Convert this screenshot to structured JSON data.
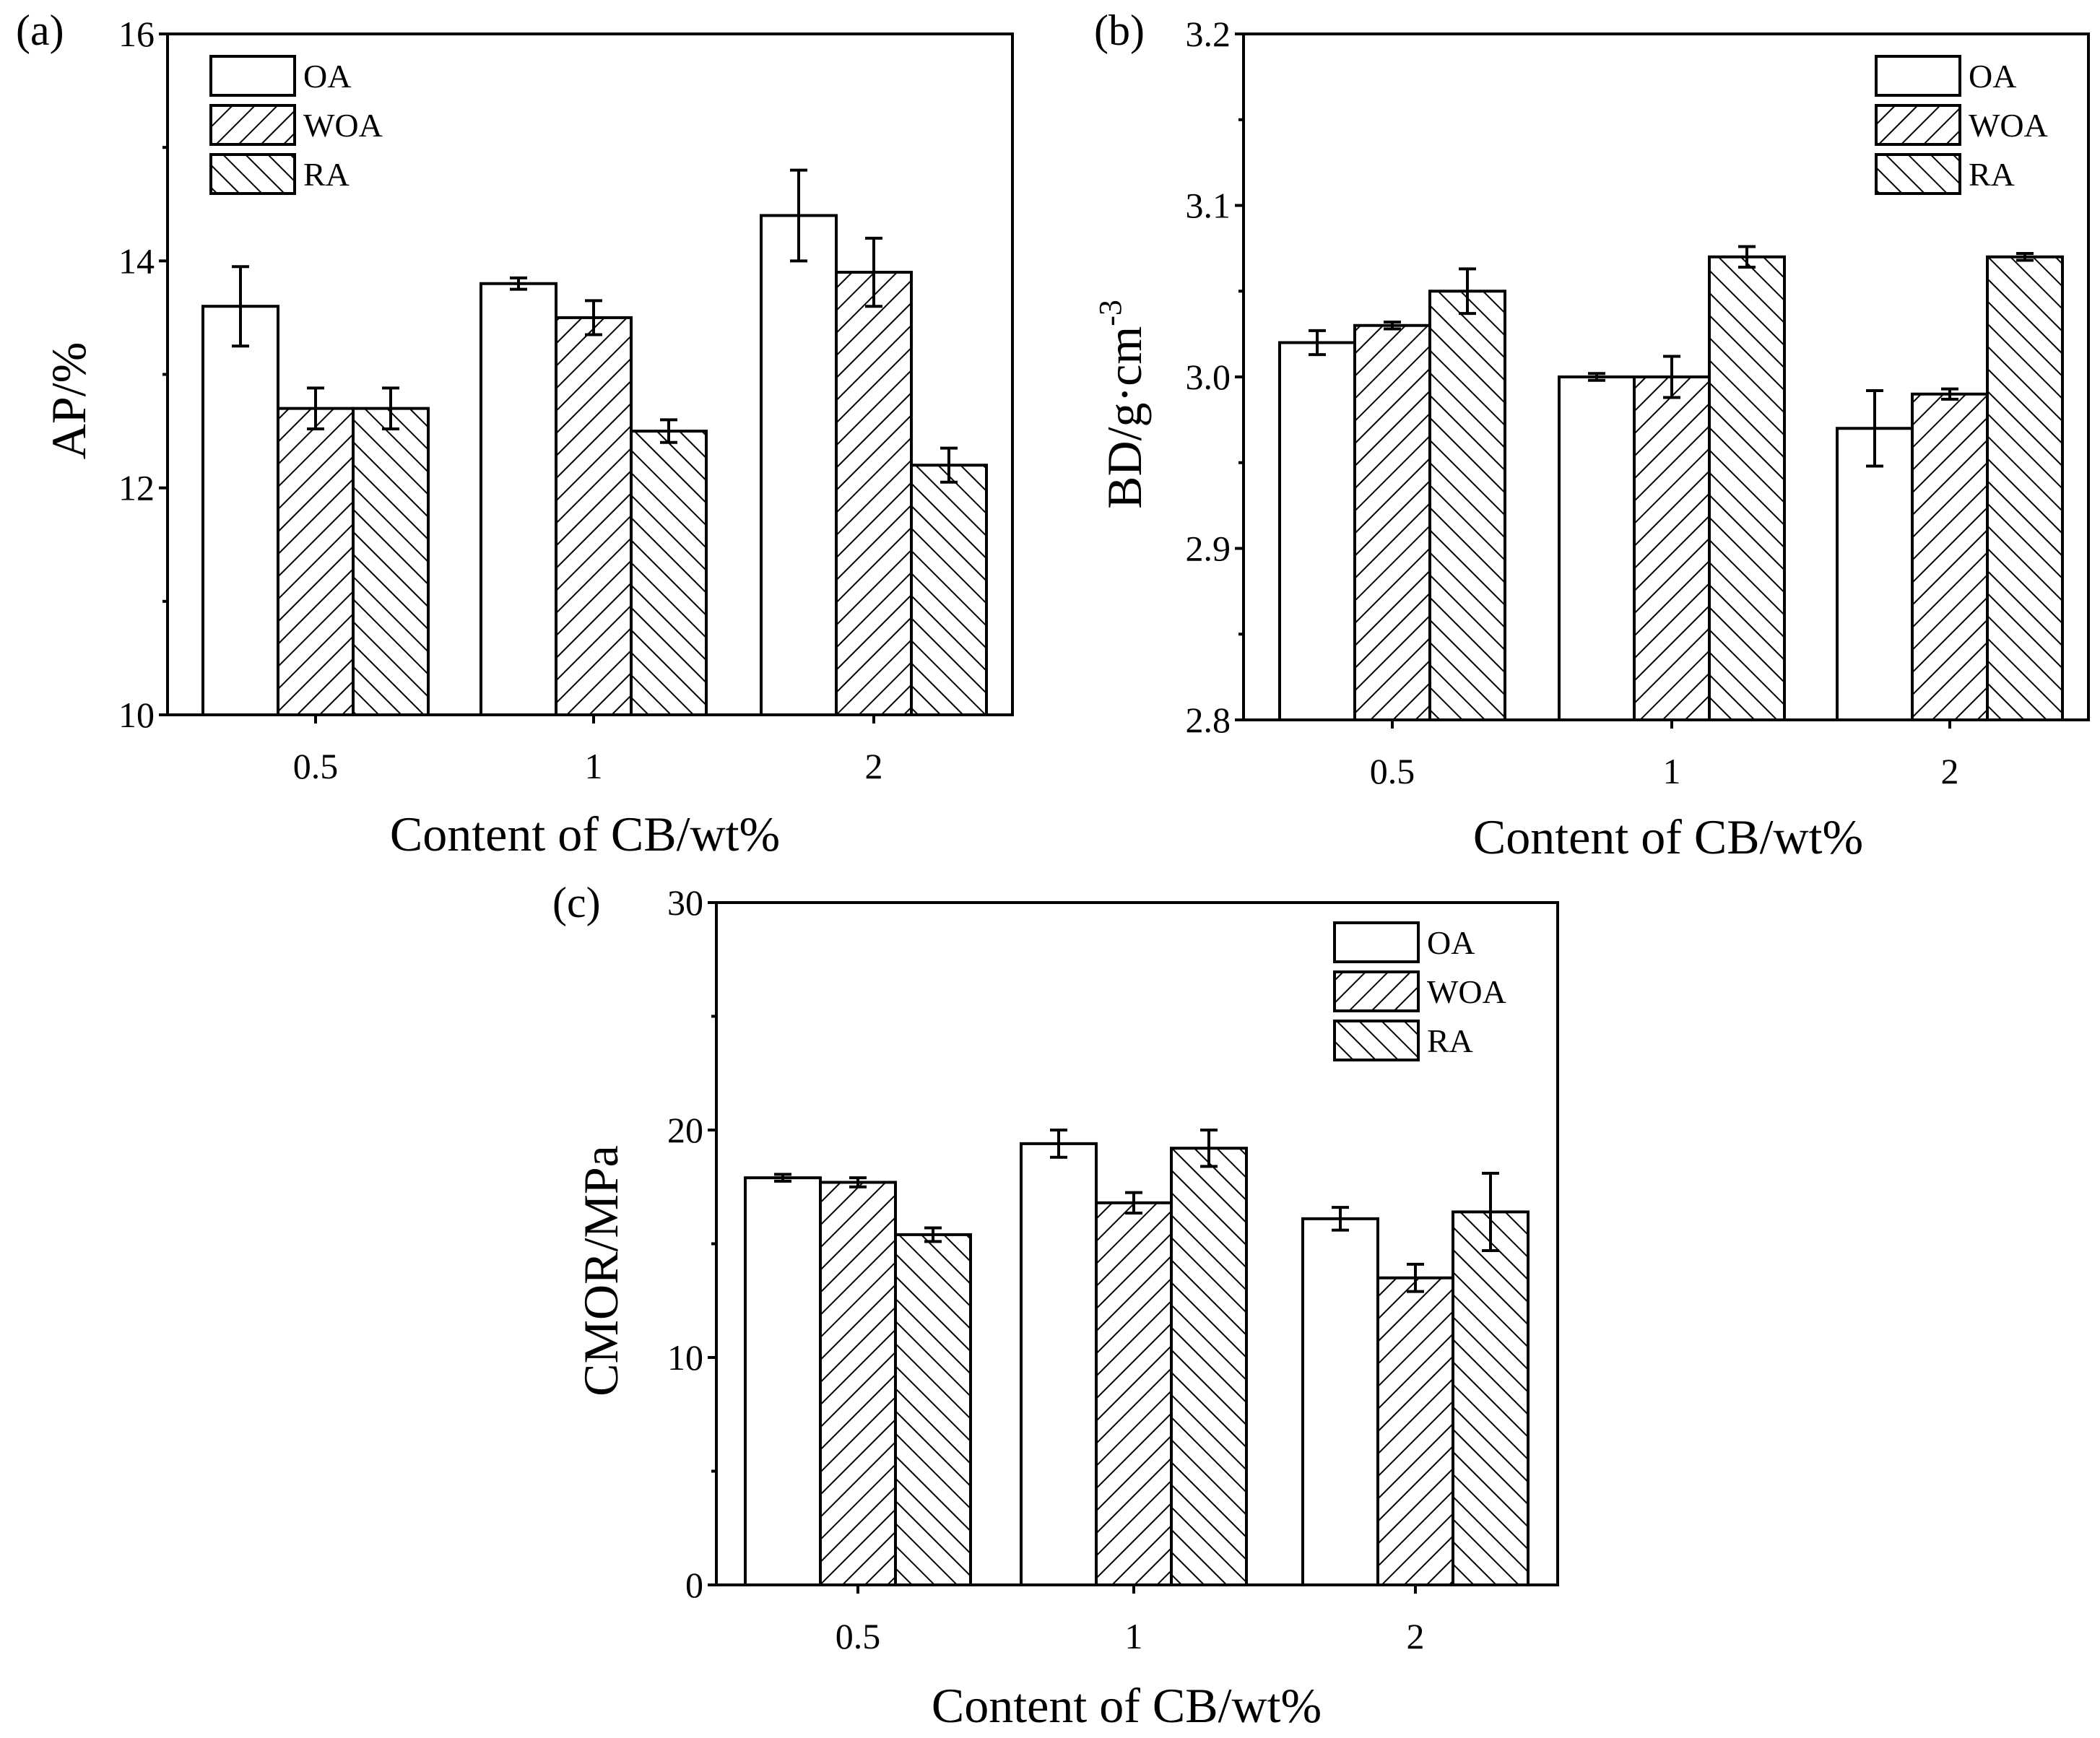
{
  "chart_data": [
    {
      "panel": "(a)",
      "type": "bar",
      "xlabel": "Content of CB/wt%",
      "ylabel": "AP/%",
      "ylim": [
        10,
        16
      ],
      "yticks": [
        "10",
        "12",
        "14",
        "16"
      ],
      "categories": [
        "0.5",
        "1",
        "2"
      ],
      "series": [
        {
          "name": "OA",
          "pattern": "none",
          "values": [
            13.6,
            13.8,
            14.4
          ],
          "errors": [
            0.35,
            0.05,
            0.4
          ]
        },
        {
          "name": "WOA",
          "pattern": "forward",
          "values": [
            12.7,
            13.5,
            13.9
          ],
          "errors": [
            0.18,
            0.15,
            0.3
          ]
        },
        {
          "name": "RA",
          "pattern": "backward",
          "values": [
            12.7,
            12.5,
            12.2
          ],
          "errors": [
            0.18,
            0.1,
            0.15
          ]
        }
      ],
      "legend": "top-left"
    },
    {
      "panel": "(b)",
      "type": "bar",
      "xlabel": "Content of CB/wt%",
      "ylabel": "BD/g·cm",
      "ylabel_sup": "-3",
      "ylim": [
        2.8,
        3.2
      ],
      "yticks": [
        "2.8",
        "2.9",
        "3.0",
        "3.1",
        "3.2"
      ],
      "categories": [
        "0.5",
        "1",
        "2"
      ],
      "series": [
        {
          "name": "OA",
          "pattern": "none",
          "values": [
            3.02,
            3.0,
            2.97
          ],
          "errors": [
            0.007,
            0.002,
            0.022
          ]
        },
        {
          "name": "WOA",
          "pattern": "forward",
          "values": [
            3.03,
            3.0,
            2.99
          ],
          "errors": [
            0.002,
            0.012,
            0.003
          ]
        },
        {
          "name": "RA",
          "pattern": "backward",
          "values": [
            3.05,
            3.07,
            3.07
          ],
          "errors": [
            0.013,
            0.006,
            0.002
          ]
        }
      ],
      "legend": "top-right"
    },
    {
      "panel": "(c)",
      "type": "bar",
      "xlabel": "Content of CB/wt%",
      "ylabel": "CMOR/MPa",
      "ylim": [
        0,
        30
      ],
      "yticks": [
        "0",
        "10",
        "20",
        "30"
      ],
      "categories": [
        "0.5",
        "1",
        "2"
      ],
      "series": [
        {
          "name": "OA",
          "pattern": "none",
          "values": [
            17.9,
            19.4,
            16.1
          ],
          "errors": [
            0.15,
            0.6,
            0.5
          ]
        },
        {
          "name": "WOA",
          "pattern": "forward",
          "values": [
            17.7,
            16.8,
            13.5
          ],
          "errors": [
            0.2,
            0.45,
            0.6
          ]
        },
        {
          "name": "RA",
          "pattern": "backward",
          "values": [
            15.4,
            19.2,
            16.4
          ],
          "errors": [
            0.3,
            0.8,
            1.7
          ]
        }
      ],
      "legend": "top-right"
    }
  ]
}
